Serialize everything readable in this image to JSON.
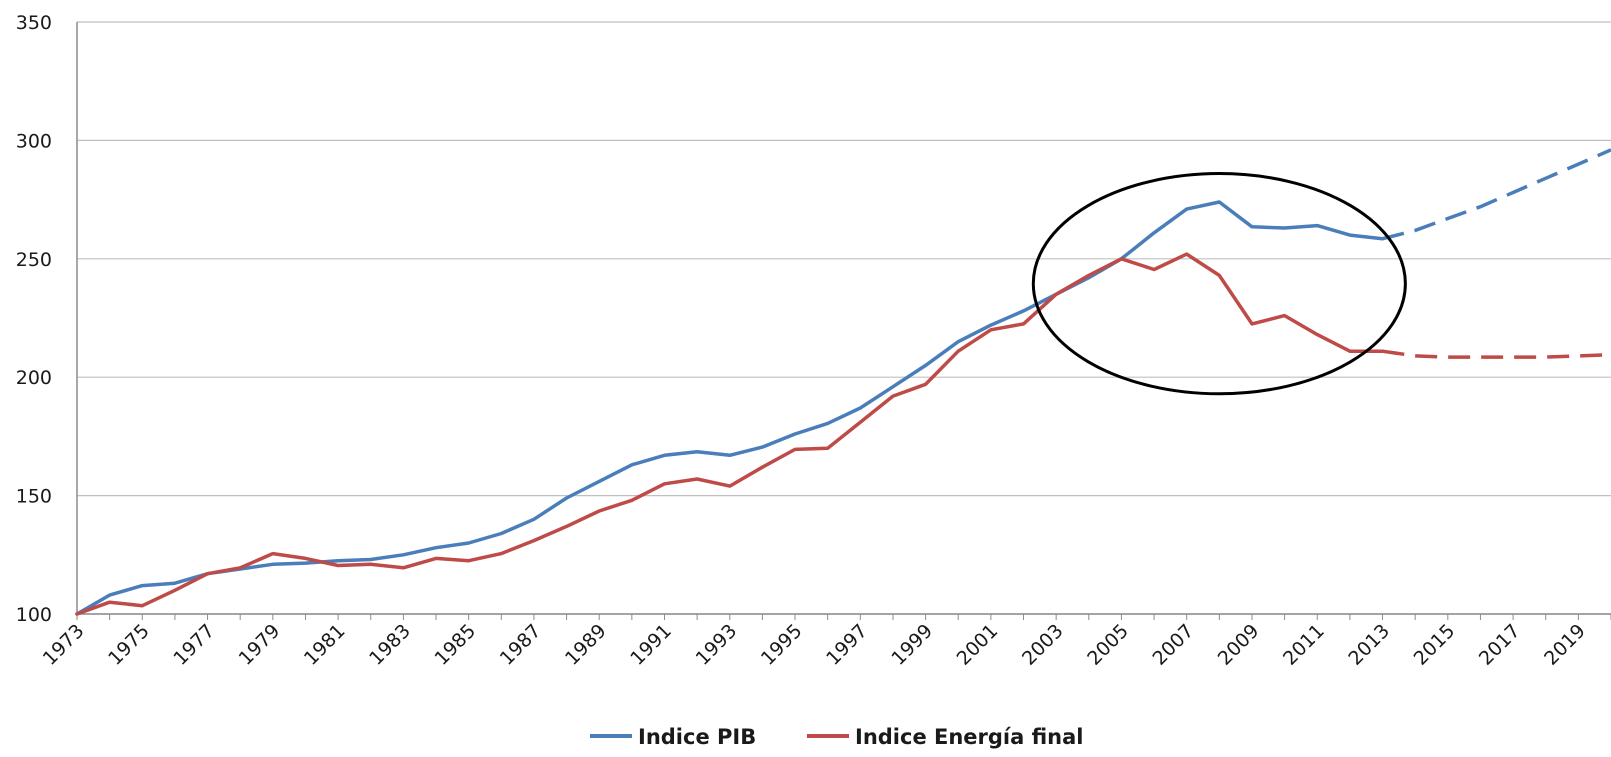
{
  "chart_data": {
    "type": "line",
    "title": "",
    "xlabel": "",
    "ylabel": "",
    "ylim": [
      100,
      350
    ],
    "yticks": [
      100,
      150,
      200,
      250,
      300,
      350
    ],
    "xlim": [
      1973,
      2020
    ],
    "xticks": [
      1973,
      1975,
      1977,
      1979,
      1981,
      1983,
      1985,
      1987,
      1989,
      1991,
      1993,
      1995,
      1997,
      1999,
      2001,
      2003,
      2005,
      2007,
      2009,
      2011,
      2013,
      2015,
      2017,
      2019
    ],
    "grid": "horizontal",
    "legend_position": "bottom",
    "series": [
      {
        "name": "Indice PIB",
        "color": "#4a7ebb",
        "x": [
          1973,
          1974,
          1975,
          1976,
          1977,
          1978,
          1979,
          1980,
          1981,
          1982,
          1983,
          1984,
          1985,
          1986,
          1987,
          1988,
          1989,
          1990,
          1991,
          1992,
          1993,
          1994,
          1995,
          1996,
          1997,
          1998,
          1999,
          2000,
          2001,
          2002,
          2003,
          2004,
          2005,
          2006,
          2007,
          2008,
          2009,
          2010,
          2011,
          2012,
          2013
        ],
        "values": [
          100,
          108,
          112,
          113,
          117,
          119,
          121,
          121.5,
          122.5,
          123,
          125,
          128,
          130,
          134,
          140,
          149,
          156,
          163,
          167,
          168.5,
          167,
          170.5,
          176,
          180.5,
          187,
          196,
          205,
          215,
          222,
          228,
          235,
          242,
          250,
          261,
          271,
          274,
          263.5,
          263,
          264,
          260,
          258.5
        ],
        "projection_x": [
          2013,
          2014,
          2015,
          2016,
          2017,
          2018,
          2019,
          2020
        ],
        "projection_values": [
          258.5,
          262,
          267,
          272,
          278,
          284,
          290,
          296
        ]
      },
      {
        "name": "Indice Energía final",
        "color": "#be4b48",
        "x": [
          1973,
          1974,
          1975,
          1976,
          1977,
          1978,
          1979,
          1980,
          1981,
          1982,
          1983,
          1984,
          1985,
          1986,
          1987,
          1988,
          1989,
          1990,
          1991,
          1992,
          1993,
          1994,
          1995,
          1996,
          1997,
          1998,
          1999,
          2000,
          2001,
          2002,
          2003,
          2004,
          2005,
          2006,
          2007,
          2008,
          2009,
          2010,
          2011,
          2012,
          2013
        ],
        "values": [
          100,
          105,
          103.5,
          110,
          117,
          119.5,
          125.5,
          123.5,
          120.5,
          121,
          119.5,
          123.5,
          122.5,
          125.5,
          131,
          137,
          143.5,
          148,
          155,
          157,
          154,
          162,
          169.5,
          170,
          181,
          192,
          197,
          211,
          220,
          222.5,
          235,
          243,
          250,
          245.5,
          252,
          243,
          222.5,
          226,
          218,
          211,
          211
        ],
        "projection_x": [
          2013,
          2014,
          2015,
          2016,
          2017,
          2018,
          2019,
          2020
        ],
        "projection_values": [
          211,
          209,
          208.5,
          208.5,
          208.5,
          208.5,
          209,
          209.5
        ]
      }
    ],
    "annotation": {
      "shape": "ellipse",
      "color": "#000000",
      "year_range": [
        2002.3,
        2013.7
      ],
      "value_range": [
        193,
        286
      ]
    }
  }
}
